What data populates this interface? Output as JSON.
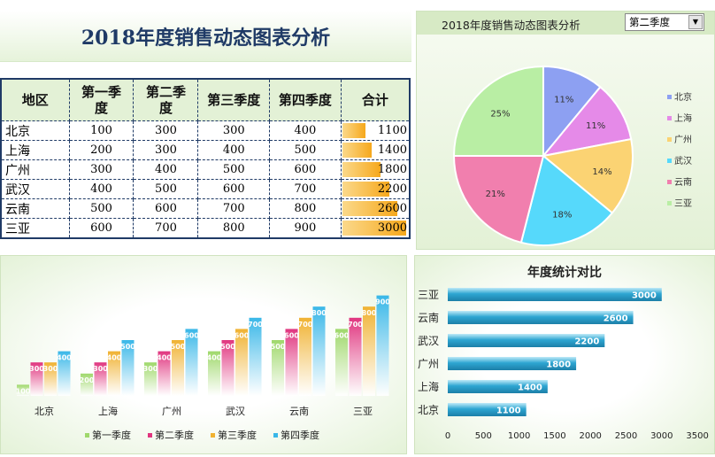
{
  "title": "2018年度销售动态图表分析",
  "table": {
    "headers": [
      "地区",
      "第一季度",
      "第二季度",
      "第三季度",
      "第四季度",
      "合计"
    ],
    "rows": [
      {
        "region": "北京",
        "q1": "100",
        "q2": "300",
        "q3": "300",
        "q4": "400",
        "total": "1100",
        "total_value": 1100
      },
      {
        "region": "上海",
        "q1": "200",
        "q2": "300",
        "q3": "400",
        "q4": "500",
        "total": "1400",
        "total_value": 1400
      },
      {
        "region": "广州",
        "q1": "300",
        "q2": "400",
        "q3": "500",
        "q4": "600",
        "total": "1800",
        "total_value": 1800
      },
      {
        "region": "武汉",
        "q1": "400",
        "q2": "500",
        "q3": "600",
        "q4": "700",
        "total": "2200",
        "total_value": 2200
      },
      {
        "region": "云南",
        "q1": "500",
        "q2": "600",
        "q3": "700",
        "q4": "800",
        "total": "2600",
        "total_value": 2600
      },
      {
        "region": "三亚",
        "q1": "600",
        "q2": "700",
        "q3": "800",
        "q4": "900",
        "total": "3000",
        "total_value": 3000
      }
    ],
    "max_total": 3000
  },
  "pie_header": {
    "title": "2018年度销售动态图表分析",
    "selected_quarter": "第二季度"
  },
  "colors": {
    "q1": "#9fd86b",
    "q2": "#e0357f",
    "q3": "#f0b232",
    "q4": "#39b7e8",
    "hbar": "#2ea6d2"
  },
  "chart_data": [
    {
      "type": "pie",
      "categories": [
        "北京",
        "上海",
        "广州",
        "武汉",
        "云南",
        "三亚"
      ],
      "values": [
        11,
        11,
        14,
        18,
        21,
        25
      ],
      "labels": [
        "11%",
        "11%",
        "14%",
        "18%",
        "21%",
        "25%"
      ],
      "colors": [
        "#8da0f2",
        "#e58ae8",
        "#fbd373",
        "#56d9fb",
        "#f17fae",
        "#b9eea4"
      ],
      "legend": "right"
    },
    {
      "type": "bar",
      "categories": [
        "北京",
        "上海",
        "广州",
        "武汉",
        "云南",
        "三亚"
      ],
      "series": [
        {
          "name": "第一季度",
          "values": [
            100,
            200,
            300,
            400,
            500,
            600
          ]
        },
        {
          "name": "第二季度",
          "values": [
            300,
            300,
            400,
            500,
            600,
            700
          ]
        },
        {
          "name": "第三季度",
          "values": [
            300,
            400,
            500,
            600,
            700,
            800
          ]
        },
        {
          "name": "第四季度",
          "values": [
            400,
            500,
            600,
            700,
            800,
            900
          ]
        }
      ],
      "ylim": [
        0,
        1000
      ],
      "legend": "bottom"
    },
    {
      "type": "bar",
      "orientation": "horizontal",
      "title": "年度统计对比",
      "categories": [
        "三亚",
        "云南",
        "武汉",
        "广州",
        "上海",
        "北京"
      ],
      "values": [
        3000,
        2600,
        2200,
        1800,
        1400,
        1100
      ],
      "xticks": [
        "0",
        "500",
        "1000",
        "1500",
        "2000",
        "2500",
        "3000",
        "3500"
      ],
      "xlim": [
        0,
        3500
      ]
    }
  ]
}
